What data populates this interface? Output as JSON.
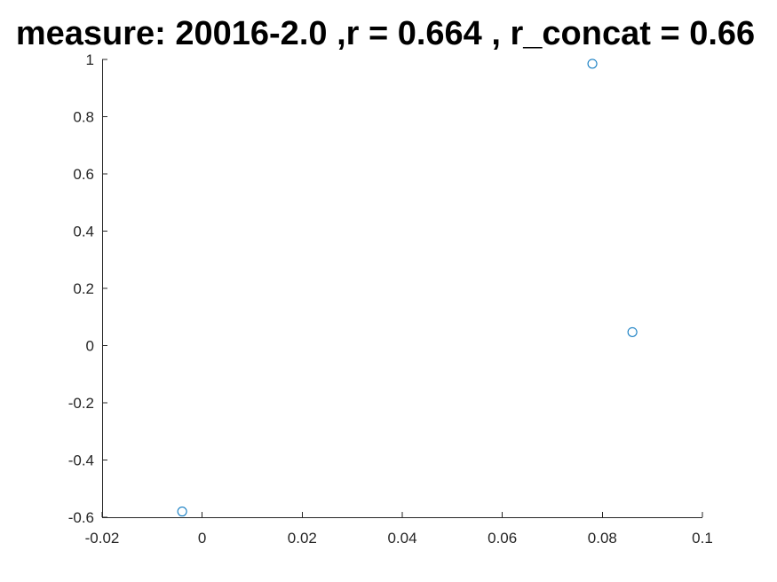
{
  "chart_data": {
    "type": "scatter",
    "title": "measure: 20016-2.0 ,r = 0.664 , r_concat = 0.66",
    "xlabel": "",
    "ylabel": "",
    "xlim": [
      -0.02,
      0.1
    ],
    "ylim": [
      -0.6,
      1
    ],
    "xticks": [
      "-0.02",
      "0",
      "0.02",
      "0.04",
      "0.06",
      "0.08",
      "0.1"
    ],
    "yticks": [
      "-0.6",
      "-0.4",
      "-0.2",
      "0",
      "0.2",
      "0.4",
      "0.6",
      "0.8",
      "1"
    ],
    "grid": false,
    "marker": "circle",
    "marker_color": "#0072BD",
    "points": [
      {
        "x": -0.004,
        "y": -0.58
      },
      {
        "x": 0.078,
        "y": 0.985
      },
      {
        "x": 0.086,
        "y": 0.047
      }
    ]
  }
}
